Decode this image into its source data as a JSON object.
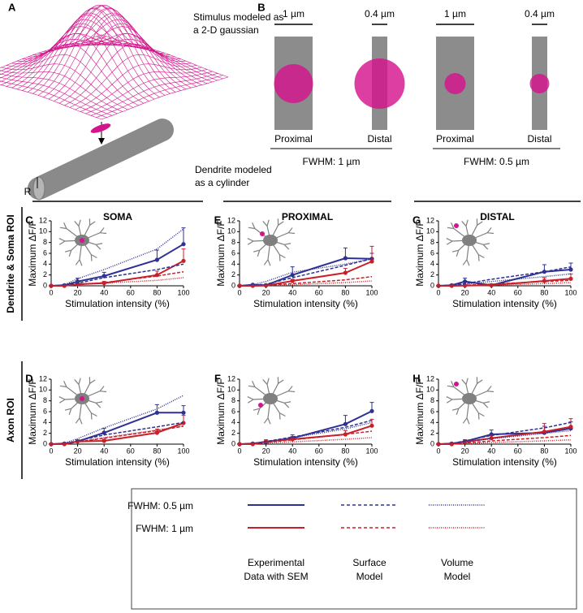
{
  "panel_a": {
    "label": "A",
    "stimulus": [
      "Stimulus modeled as",
      "a 2-D gaussian"
    ],
    "radius": "R",
    "dendrite": [
      "Dendrite modeled",
      "as a cylinder"
    ]
  },
  "panel_b": {
    "label": "B",
    "widths": [
      "1 µm",
      "0.4 µm",
      "1 µm",
      "0.4 µm"
    ],
    "sites": [
      "Proximal",
      "Distal",
      "Proximal",
      "Distal"
    ],
    "groups": [
      {
        "text": "FWHM: 1 µm",
        "color": "#c8202a"
      },
      {
        "text": "FWHM: 0.5 µm",
        "color": "#2e2e8f"
      }
    ]
  },
  "columns": [
    "SOMA",
    "PROXIMAL",
    "DISTAL"
  ],
  "rows": [
    {
      "text": "Dendrite & Soma ROI",
      "color": "#000000"
    },
    {
      "text": "Axon ROI",
      "color": "#8dc63f"
    }
  ],
  "legend": {
    "rows": [
      {
        "text": "FWHM: 0.5 µm",
        "color": "#2e3192"
      },
      {
        "text": "FWHM: 1 µm",
        "color": "#c8202a"
      }
    ],
    "columns": [
      [
        "Experimental",
        "Data with SEM"
      ],
      [
        "Surface",
        "Model"
      ],
      [
        "Volume",
        "Model"
      ]
    ]
  },
  "chart_data": [
    {
      "type": "line",
      "label": "C",
      "ylabel": "Maximum ΔF/F",
      "xlabel": "Stimulation intensity (%)",
      "x": [
        0,
        10,
        20,
        40,
        80,
        100
      ],
      "xlim": [
        0,
        100
      ],
      "xticks": [
        0,
        20,
        40,
        60,
        80,
        100
      ],
      "ylim": [
        0,
        12
      ],
      "yticks": [
        0,
        2,
        4,
        6,
        8,
        10,
        12
      ],
      "series": [
        {
          "color": "#2e3192",
          "dash": "solid",
          "values": [
            0,
            0.1,
            0.8,
            1.8,
            4.8,
            7.7
          ],
          "errors": [
            0,
            0.1,
            0.6,
            0.7,
            1.8,
            3
          ]
        },
        {
          "color": "#c8202a",
          "dash": "solid",
          "values": [
            0,
            0,
            0.3,
            0.5,
            2,
            4.6
          ],
          "errors": [
            0,
            0,
            0.2,
            0.3,
            0.7,
            2.2
          ]
        },
        {
          "color": "#2e3192",
          "dash": "dashed",
          "values": [
            0,
            0.1,
            0.5,
            1.5,
            3,
            4
          ]
        },
        {
          "color": "#c8202a",
          "dash": "dashed",
          "values": [
            0,
            0,
            0.2,
            0.6,
            1.8,
            2.6
          ]
        },
        {
          "color": "#2e3192",
          "dash": "dotted",
          "values": [
            0,
            0.2,
            1.3,
            3,
            6.8,
            10.5
          ]
        },
        {
          "color": "#c8202a",
          "dash": "dotted",
          "values": [
            0,
            0,
            0.2,
            0.5,
            1,
            1.5
          ]
        }
      ]
    },
    {
      "type": "line",
      "label": "E",
      "ylabel": "Maximum ΔF/F",
      "xlabel": "Stimulation intensity (%)",
      "x": [
        0,
        10,
        20,
        40,
        80,
        100
      ],
      "xlim": [
        0,
        100
      ],
      "xticks": [
        0,
        20,
        40,
        60,
        80,
        100
      ],
      "ylim": [
        0,
        12
      ],
      "yticks": [
        0,
        2,
        4,
        6,
        8,
        10,
        12
      ],
      "series": [
        {
          "color": "#2e3192",
          "dash": "solid",
          "values": [
            0,
            0.2,
            0.1,
            2,
            5.1,
            5
          ],
          "errors": [
            0,
            0.1,
            0.2,
            1.5,
            1.9,
            1
          ]
        },
        {
          "color": "#c8202a",
          "dash": "solid",
          "values": [
            0,
            0,
            0.05,
            0.9,
            2.4,
            4.5
          ],
          "errors": [
            0,
            0,
            0.05,
            0.3,
            0.8,
            2.8
          ]
        },
        {
          "color": "#2e3192",
          "dash": "dashed",
          "values": [
            0,
            0.1,
            0.3,
            1.5,
            3.8,
            5
          ]
        },
        {
          "color": "#c8202a",
          "dash": "dashed",
          "values": [
            0,
            0,
            0.1,
            0.4,
            1.1,
            1.7
          ]
        },
        {
          "color": "#2e3192",
          "dash": "dotted",
          "values": [
            0,
            0.2,
            0.8,
            2.5,
            4,
            5
          ]
        },
        {
          "color": "#c8202a",
          "dash": "dotted",
          "values": [
            0,
            0,
            0.05,
            0.2,
            0.6,
            0.9
          ]
        }
      ]
    },
    {
      "type": "line",
      "label": "G",
      "ylabel": "Maximum ΔF/F",
      "xlabel": "Stimulation intensity (%)",
      "x": [
        0,
        10,
        20,
        40,
        80,
        100
      ],
      "xlim": [
        0,
        100
      ],
      "xticks": [
        0,
        20,
        40,
        60,
        80,
        100
      ],
      "ylim": [
        0,
        12
      ],
      "yticks": [
        0,
        2,
        4,
        6,
        8,
        10,
        12
      ],
      "series": [
        {
          "color": "#2e3192",
          "dash": "solid",
          "values": [
            0,
            0.1,
            0.8,
            0.1,
            2.6,
            3
          ],
          "errors": [
            0,
            0.1,
            0.6,
            0.1,
            1.3,
            1.2
          ]
        },
        {
          "color": "#c8202a",
          "dash": "solid",
          "values": [
            0,
            0,
            0.05,
            0.1,
            0.9,
            1.3
          ],
          "errors": [
            0,
            0,
            0.05,
            0.1,
            0.6,
            0.9
          ]
        },
        {
          "color": "#2e3192",
          "dash": "dashed",
          "values": [
            0,
            0.1,
            0.4,
            1.2,
            2.6,
            3.5
          ]
        },
        {
          "color": "#c8202a",
          "dash": "dashed",
          "values": [
            0,
            0,
            0.1,
            0.3,
            0.8,
            1
          ]
        },
        {
          "color": "#2e3192",
          "dash": "dotted",
          "values": [
            0,
            0.1,
            0.3,
            0.8,
            1.7,
            2.2
          ]
        },
        {
          "color": "#c8202a",
          "dash": "dotted",
          "values": [
            0,
            0,
            0.05,
            0.1,
            0.4,
            0.6
          ]
        }
      ]
    },
    {
      "type": "line",
      "label": "D",
      "ylabel": "Maximum ΔF/F",
      "xlabel": "Stimulation intensity (%)",
      "x": [
        0,
        10,
        20,
        40,
        80,
        100
      ],
      "xlim": [
        0,
        100
      ],
      "xticks": [
        0,
        20,
        40,
        60,
        80,
        100
      ],
      "ylim": [
        0,
        12
      ],
      "yticks": [
        0,
        2,
        4,
        6,
        8,
        10,
        12
      ],
      "series": [
        {
          "color": "#2e3192",
          "dash": "solid",
          "values": [
            0,
            0.1,
            0.5,
            2.1,
            5.8,
            5.8
          ],
          "errors": [
            0,
            0.1,
            0.3,
            0.8,
            1.5,
            1.3
          ]
        },
        {
          "color": "#c8202a",
          "dash": "solid",
          "values": [
            0,
            0,
            0.5,
            0.6,
            2.1,
            3.9
          ],
          "errors": [
            0,
            0,
            0.2,
            0.3,
            0.7,
            1.4
          ]
        },
        {
          "color": "#2e3192",
          "dash": "dashed",
          "values": [
            0,
            0.1,
            0.6,
            1.7,
            3.2,
            4
          ]
        },
        {
          "color": "#c8202a",
          "dash": "dashed",
          "values": [
            0,
            0,
            0.4,
            1.1,
            2.5,
            3.3
          ]
        },
        {
          "color": "#2e3192",
          "dash": "dotted",
          "values": [
            0,
            0.2,
            1,
            3,
            6.5,
            9
          ]
        },
        {
          "color": "#c8202a",
          "dash": "dotted",
          "values": [
            0,
            0,
            0.4,
            1.2,
            2.6,
            3.4
          ]
        }
      ]
    },
    {
      "type": "line",
      "label": "F",
      "ylabel": "Maximum ΔF/F",
      "xlabel": "Stimulation intensity (%)",
      "x": [
        0,
        10,
        20,
        40,
        80,
        100
      ],
      "xlim": [
        0,
        100
      ],
      "xticks": [
        0,
        20,
        40,
        60,
        80,
        100
      ],
      "ylim": [
        0,
        12
      ],
      "yticks": [
        0,
        2,
        4,
        6,
        8,
        10,
        12
      ],
      "series": [
        {
          "color": "#2e3192",
          "dash": "solid",
          "values": [
            0,
            0.1,
            0.4,
            1.1,
            3.7,
            6.1
          ],
          "errors": [
            0,
            0.1,
            0.2,
            0.6,
            1.6,
            1.6
          ]
        },
        {
          "color": "#c8202a",
          "dash": "solid",
          "values": [
            0,
            0,
            0.5,
            0.9,
            1.8,
            3.4
          ],
          "errors": [
            0,
            0,
            0.3,
            0.5,
            0.7,
            1.2
          ]
        },
        {
          "color": "#2e3192",
          "dash": "dashed",
          "values": [
            0,
            0.1,
            0.5,
            1.3,
            3.1,
            4.4
          ]
        },
        {
          "color": "#c8202a",
          "dash": "dashed",
          "values": [
            0,
            0,
            0.3,
            0.8,
            1.8,
            2.4
          ]
        },
        {
          "color": "#2e3192",
          "dash": "dotted",
          "values": [
            0,
            0.1,
            0.4,
            1.2,
            2.8,
            4
          ]
        },
        {
          "color": "#c8202a",
          "dash": "dotted",
          "values": [
            0,
            0,
            0.2,
            0.4,
            0.9,
            1.2
          ]
        }
      ]
    },
    {
      "type": "line",
      "label": "H",
      "ylabel": "Maximum ΔF/F",
      "xlabel": "Stimulation intensity (%)",
      "x": [
        0,
        10,
        20,
        40,
        80,
        100
      ],
      "xlim": [
        0,
        100
      ],
      "xticks": [
        0,
        20,
        40,
        60,
        80,
        100
      ],
      "ylim": [
        0,
        12
      ],
      "yticks": [
        0,
        2,
        4,
        6,
        8,
        10,
        12
      ],
      "series": [
        {
          "color": "#2e3192",
          "dash": "solid",
          "values": [
            0,
            0.1,
            0.5,
            1.8,
            2.1,
            2.9
          ],
          "errors": [
            0,
            0.1,
            0.3,
            0.8,
            1.2,
            1.2
          ]
        },
        {
          "color": "#c8202a",
          "dash": "solid",
          "values": [
            0,
            0,
            0.4,
            1.1,
            2.3,
            3.2
          ],
          "errors": [
            0,
            0,
            0.2,
            0.5,
            1.5,
            1.5
          ]
        },
        {
          "color": "#2e3192",
          "dash": "dashed",
          "values": [
            0,
            0.1,
            0.6,
            1.6,
            3,
            4
          ]
        },
        {
          "color": "#c8202a",
          "dash": "dashed",
          "values": [
            0,
            0,
            0.2,
            0.6,
            1.2,
            1.6
          ]
        },
        {
          "color": "#2e3192",
          "dash": "dotted",
          "values": [
            0,
            0.1,
            0.4,
            1,
            2,
            2.5
          ]
        },
        {
          "color": "#c8202a",
          "dash": "dotted",
          "values": [
            0,
            0,
            0.1,
            0.3,
            0.6,
            0.8
          ]
        }
      ]
    }
  ]
}
